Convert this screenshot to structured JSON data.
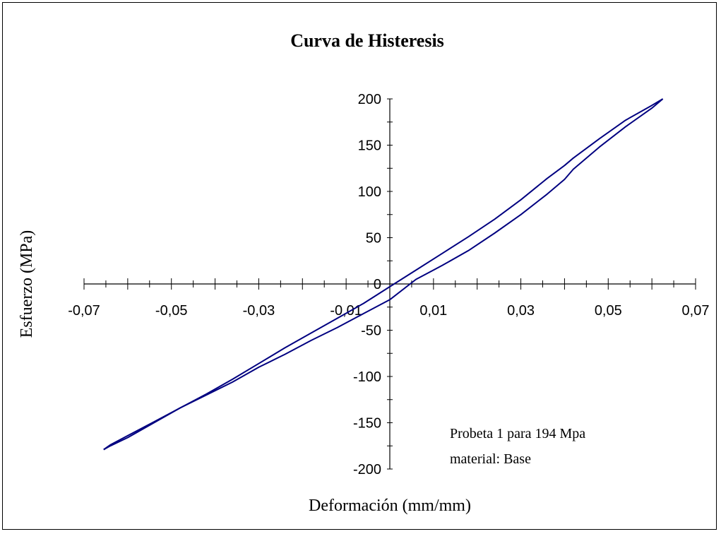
{
  "chart_data": {
    "type": "line",
    "title": "Curva de Histeresis",
    "xlabel": "Deformación (mm/mm)",
    "ylabel": "Esfuerzo (MPa)",
    "xlim": [
      -0.07,
      0.07
    ],
    "ylim": [
      -200,
      200
    ],
    "x_ticks": [
      -0.07,
      -0.05,
      -0.03,
      -0.01,
      0.01,
      0.03,
      0.05,
      0.07
    ],
    "x_tick_labels": [
      "-0,07",
      "-0,05",
      "-0,03",
      "-0,01",
      "0,01",
      "0,03",
      "0,05",
      "0,07"
    ],
    "y_ticks": [
      -200,
      -150,
      -100,
      -50,
      0,
      50,
      100,
      150,
      200
    ],
    "y_tick_labels": [
      "-200",
      "-150",
      "-100",
      "-50",
      "0",
      "50",
      "100",
      "150",
      "200"
    ],
    "grid": false,
    "line_color": "#000080",
    "annotations": [
      "Probeta 1 para 194 Mpa",
      "material: Base"
    ],
    "series": [
      {
        "x": [
          -0.0655,
          -0.064,
          -0.06,
          -0.054,
          -0.048,
          -0.042,
          -0.036,
          -0.03,
          -0.024,
          -0.018,
          -0.012,
          -0.006,
          0,
          0.006,
          0.012,
          0.018,
          0.024,
          0.03,
          0.036,
          0.04,
          0.042,
          0.048,
          0.054,
          0.06,
          0.0625
        ],
        "y": [
          -179,
          -174,
          -164,
          -149,
          -134,
          -120,
          -106,
          -90,
          -76,
          -61,
          -47,
          -32,
          -17,
          5,
          20,
          36,
          55,
          75,
          97,
          113,
          124,
          148,
          170,
          190,
          200
        ]
      },
      {
        "x": [
          0.0625,
          0.06,
          0.054,
          0.048,
          0.042,
          0.04,
          0.036,
          0.03,
          0.024,
          0.018,
          0.012,
          0.006,
          0,
          -0.006,
          -0.012,
          -0.018,
          -0.024,
          -0.03,
          -0.036,
          -0.042,
          -0.048,
          -0.054,
          -0.06,
          -0.064,
          -0.0655
        ],
        "y": [
          200,
          193,
          177,
          157,
          136,
          128,
          114,
          91,
          70,
          51,
          33,
          15,
          -3,
          -21,
          -37,
          -53,
          -69,
          -86,
          -103,
          -119,
          -134,
          -150,
          -166,
          -175,
          -179
        ]
      }
    ]
  }
}
